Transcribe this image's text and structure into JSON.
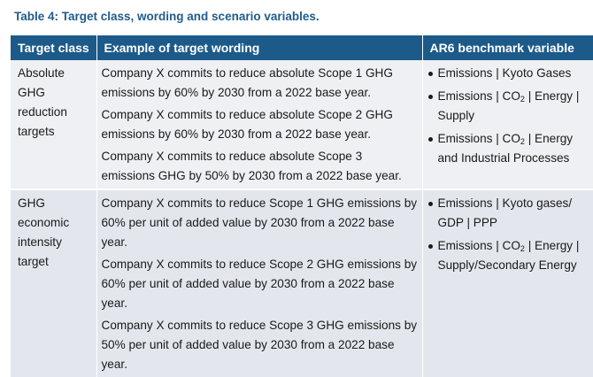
{
  "caption": "Table 4:  Target class, wording and scenario variables.",
  "headers": [
    "Target class",
    "Example of target wording",
    "AR6 benchmark variable"
  ],
  "rows": [
    {
      "target_class": "Absolute GHG reduction targets",
      "examples": [
        "Company X commits to reduce absolute Scope 1 GHG emissions by 60% by 2030 from a 2022 base year.",
        "Company X commits to reduce absolute Scope 2 GHG emissions by 60% by 2030 from a 2022 base year.",
        "Company X commits to reduce absolute Scope 3 emissions GHG by 50% by 2030 from a 2022 base year."
      ],
      "benchmarks": [
        "Emissions | Kyoto Gases",
        "Emissions | CO₂ | Energy | Supply",
        "Emissions | CO₂ | Energy and Industrial Processes"
      ]
    },
    {
      "target_class": "GHG economic intensity target",
      "examples": [
        "Company X commits to reduce Scope 1 GHG emissions by 60% per unit of added value by 2030 from a 2022 base year.",
        "Company X commits to reduce Scope 2 GHG emissions by 60% per unit of added value by 2030 from a 2022 base year.",
        "Company X commits to reduce Scope 3 GHG emissions by 50% per unit of added value by 2030 from a 2022 base year."
      ],
      "benchmarks": [
        "Emissions | Kyoto gases/ GDP | PPP",
        "Emissions | CO₂ | Energy | Supply/Secondary Energy"
      ]
    }
  ]
}
